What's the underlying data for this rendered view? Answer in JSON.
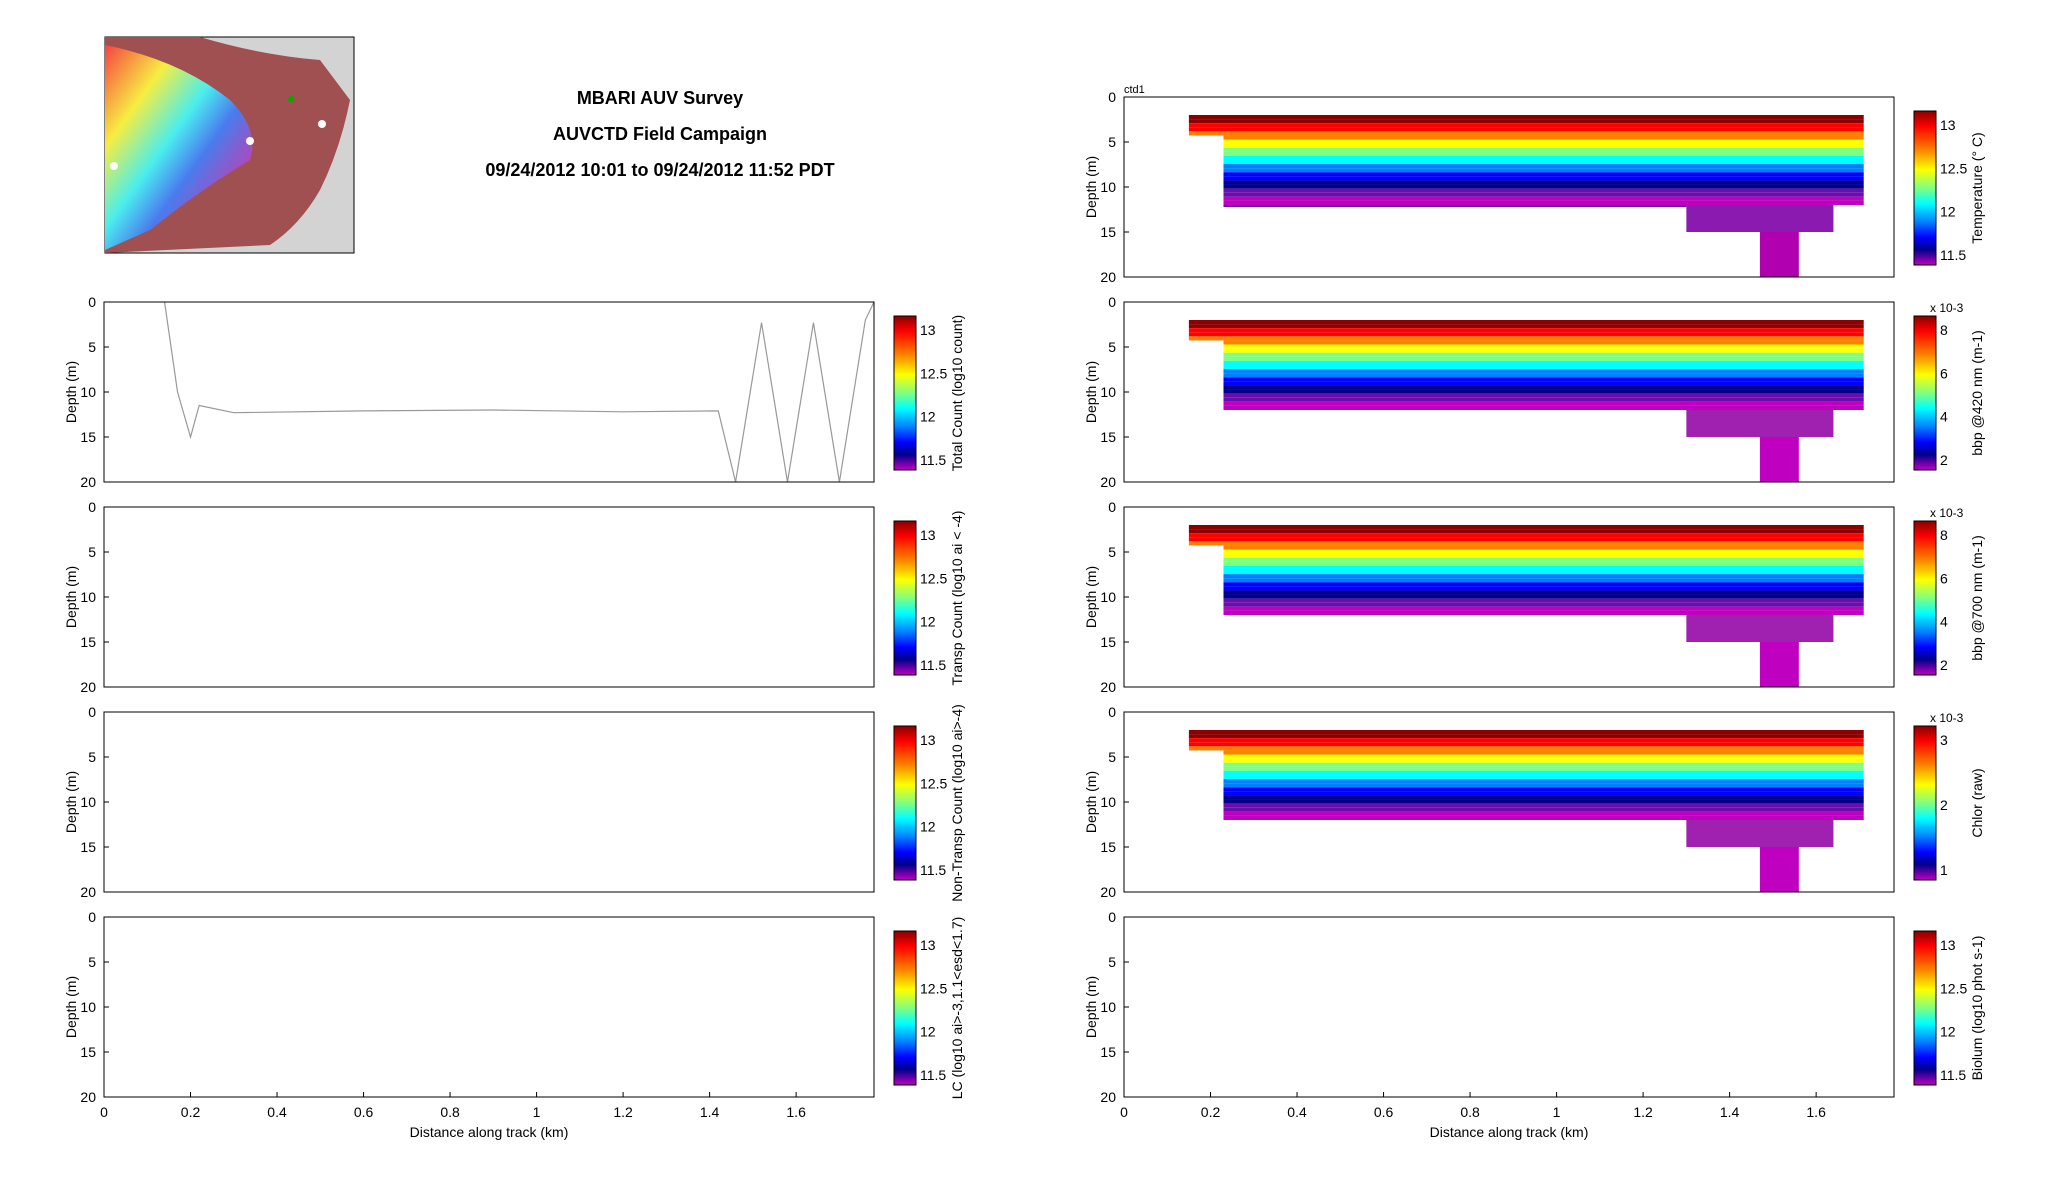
{
  "header": {
    "title_line1": "MBARI AUV Survey",
    "title_line2": "AUVCTD Field Campaign",
    "title_line3": "09/24/2012 10:01 to 09/24/2012 11:52 PDT"
  },
  "colors": {
    "jet": [
      "#8b0000",
      "#ff0000",
      "#ff7f00",
      "#ffff00",
      "#7fff7f",
      "#00ffff",
      "#0080ff",
      "#0000ff",
      "#00008b",
      "#6a0dad",
      "#c000c0"
    ],
    "map_land": "#a05050",
    "map_sea": "#d3d3d3",
    "trace_line": "#999999"
  },
  "chart_data": [
    {
      "id": "left-panel-1",
      "type": "line",
      "ylabel": "Depth (m)",
      "ylim": [
        20,
        0
      ],
      "xlim": [
        0,
        1.78
      ],
      "yticks": [
        "0",
        "5",
        "10",
        "15",
        "20"
      ],
      "xticks": [],
      "colorbar_label": "Total Count (log10 count)",
      "colorbar_ticks": [
        "13",
        "12.5",
        "12",
        "11.5"
      ],
      "series": [
        {
          "x": [
            0.14,
            0.17,
            0.2,
            0.22,
            0.3,
            0.6,
            0.9,
            1.2,
            1.42,
            1.46,
            1.52,
            1.58,
            1.64,
            1.7,
            1.76,
            1.78
          ],
          "y": [
            0,
            10,
            15,
            11.5,
            12.3,
            12.1,
            12.0,
            12.2,
            12.1,
            20,
            2.3,
            20,
            2.3,
            20,
            2,
            0
          ]
        }
      ]
    },
    {
      "id": "left-panel-2",
      "type": "line",
      "ylabel": "Depth (m)",
      "ylim": [
        20,
        0
      ],
      "xlim": [
        0,
        1.78
      ],
      "yticks": [
        "0",
        "5",
        "10",
        "15",
        "20"
      ],
      "xticks": [],
      "colorbar_label": "Transp Count (log10 ai < -4)",
      "colorbar_ticks": [
        "13",
        "12.5",
        "12",
        "11.5"
      ],
      "series": []
    },
    {
      "id": "left-panel-3",
      "type": "line",
      "ylabel": "Depth (m)",
      "ylim": [
        20,
        0
      ],
      "xlim": [
        0,
        1.78
      ],
      "yticks": [
        "0",
        "5",
        "10",
        "15",
        "20"
      ],
      "xticks": [],
      "colorbar_label": "Non-Transp Count (log10 ai>-4)",
      "colorbar_ticks": [
        "13",
        "12.5",
        "12",
        "11.5"
      ],
      "series": []
    },
    {
      "id": "left-panel-4",
      "type": "line",
      "ylabel": "Depth (m)",
      "xlabel": "Distance along track (km)",
      "ylim": [
        20,
        0
      ],
      "xlim": [
        0,
        1.78
      ],
      "yticks": [
        "0",
        "5",
        "10",
        "15",
        "20"
      ],
      "xticks": [
        "0",
        "0.2",
        "0.4",
        "0.6",
        "0.8",
        "1",
        "1.2",
        "1.4",
        "1.6"
      ],
      "colorbar_label": "LC (log10 ai>-3,1.1<esd<1.7)",
      "colorbar_ticks": [
        "13",
        "12.5",
        "12",
        "11.5"
      ],
      "series": []
    },
    {
      "id": "right-panel-1",
      "type": "heatmap",
      "annotation": "ctd1",
      "ylabel": "Depth (m)",
      "ylim": [
        20,
        0
      ],
      "xlim": [
        0,
        1.78
      ],
      "yticks": [
        "0",
        "5",
        "10",
        "15",
        "20"
      ],
      "xticks": [],
      "colorbar_label": "Temperature (° C)",
      "colorbar_ticks": [
        "13",
        "12.5",
        "12",
        "11.5"
      ],
      "section": {
        "x_start": 0.15,
        "x_end": 1.71,
        "surface_depth": 2,
        "profile_x": [
          0.15,
          0.23,
          0.6,
          1.0,
          1.3,
          1.48,
          1.71
        ],
        "thermocline_depth": [
          5,
          8,
          9.5,
          9.5,
          7.5,
          6,
          5
        ]
      }
    },
    {
      "id": "right-panel-2",
      "type": "heatmap",
      "ylabel": "Depth (m)",
      "ylim": [
        20,
        0
      ],
      "xlim": [
        0,
        1.78
      ],
      "yticks": [
        "0",
        "5",
        "10",
        "15",
        "20"
      ],
      "xticks": [],
      "colorbar_label": "bbp @420 nm (m-1)",
      "colorbar_exponent": "x 10-3",
      "colorbar_ticks": [
        "8",
        "6",
        "4",
        "2"
      ]
    },
    {
      "id": "right-panel-3",
      "type": "heatmap",
      "ylabel": "Depth (m)",
      "ylim": [
        20,
        0
      ],
      "xlim": [
        0,
        1.78
      ],
      "yticks": [
        "0",
        "5",
        "10",
        "15",
        "20"
      ],
      "xticks": [],
      "colorbar_label": "bbp @700 nm (m-1)",
      "colorbar_exponent": "x 10-3",
      "colorbar_ticks": [
        "8",
        "6",
        "4",
        "2"
      ]
    },
    {
      "id": "right-panel-4",
      "type": "heatmap",
      "ylabel": "Depth (m)",
      "ylim": [
        20,
        0
      ],
      "xlim": [
        0,
        1.78
      ],
      "yticks": [
        "0",
        "5",
        "10",
        "15",
        "20"
      ],
      "xticks": [],
      "colorbar_label": "Chlor (raw)",
      "colorbar_exponent": "x 10-3",
      "colorbar_ticks": [
        "3",
        "2",
        "1"
      ]
    },
    {
      "id": "right-panel-5",
      "type": "heatmap",
      "ylabel": "Depth (m)",
      "xlabel": "Distance along track (km)",
      "ylim": [
        20,
        0
      ],
      "xlim": [
        0,
        1.78
      ],
      "yticks": [
        "0",
        "5",
        "10",
        "15",
        "20"
      ],
      "xticks": [
        "0",
        "0.2",
        "0.4",
        "0.6",
        "0.8",
        "1",
        "1.2",
        "1.4",
        "1.6"
      ],
      "colorbar_label": "Biolum (log10 phot s-1)",
      "colorbar_ticks": [
        "13",
        "12.5",
        "12",
        "11.5"
      ]
    }
  ]
}
